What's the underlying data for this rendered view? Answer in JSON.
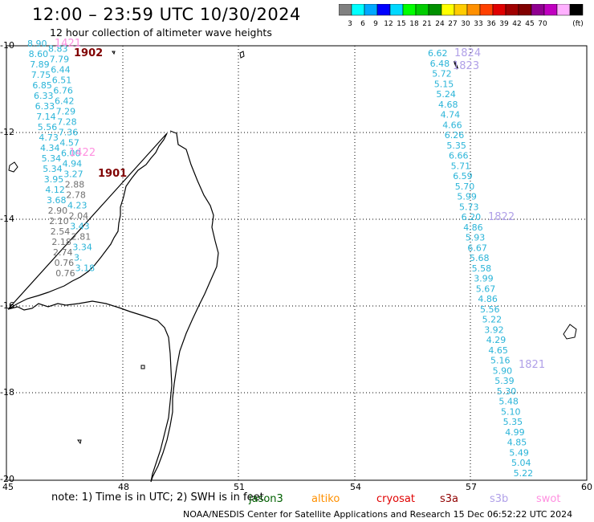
{
  "title": "12:00 – 23:59 UTC 10/30/2024",
  "subtitle": "12 hour collection of altimeter wave heights",
  "legend": {
    "unit": "(ft)",
    "colors": [
      "#808080",
      "#00ffff",
      "#00a8ff",
      "#0000ff",
      "#00d8ff",
      "#00ff00",
      "#00cc00",
      "#009000",
      "#ffff00",
      "#ffcc00",
      "#ff9000",
      "#ff4000",
      "#e00000",
      "#a00000",
      "#800000",
      "#900090",
      "#c000c0",
      "#ffb0ff",
      "#000000"
    ],
    "labels": [
      "3",
      "6",
      "9",
      "12",
      "15",
      "18",
      "21",
      "24",
      "27",
      "30",
      "33",
      "36",
      "39",
      "42",
      "45",
      "70"
    ]
  },
  "axes": {
    "x_ticks": [
      "45",
      "48",
      "51",
      "54",
      "57",
      "60"
    ],
    "y_ticks": [
      "-10",
      "-12",
      "-14",
      "-16",
      "-18",
      "-20"
    ]
  },
  "passes": [
    {
      "id": "1421",
      "color": "#ff90e0"
    },
    {
      "id": "1902",
      "color": "#800000"
    },
    {
      "id": "1422",
      "color": "#ff90e0"
    },
    {
      "id": "1901",
      "color": "#800000"
    },
    {
      "id": "1824",
      "color": "#b0a0e8"
    },
    {
      "id": "1823",
      "color": "#b0a0e8"
    },
    {
      "id": "1822",
      "color": "#b0a0e8"
    },
    {
      "id": "1821",
      "color": "#b0a0e8"
    }
  ],
  "west_track": [
    {
      "v": "8.90",
      "c": "#2ab4d8"
    },
    {
      "v": "8.83",
      "c": "#2ab4d8"
    },
    {
      "v": "8.60",
      "c": "#2ab4d8"
    },
    {
      "v": "7.79",
      "c": "#2ab4d8"
    },
    {
      "v": "7.89",
      "c": "#2ab4d8"
    },
    {
      "v": "6.44",
      "c": "#2ab4d8"
    },
    {
      "v": "7.75",
      "c": "#2ab4d8"
    },
    {
      "v": "6.51",
      "c": "#2ab4d8"
    },
    {
      "v": "6.85",
      "c": "#2ab4d8"
    },
    {
      "v": "6.76",
      "c": "#2ab4d8"
    },
    {
      "v": "6.33",
      "c": "#2ab4d8"
    },
    {
      "v": "6.42",
      "c": "#2ab4d8"
    },
    {
      "v": "6.33",
      "c": "#2ab4d8"
    },
    {
      "v": "7.29",
      "c": "#2ab4d8"
    },
    {
      "v": "7.14",
      "c": "#2ab4d8"
    },
    {
      "v": "7.28",
      "c": "#2ab4d8"
    },
    {
      "v": "5.56",
      "c": "#2ab4d8"
    },
    {
      "v": "7.36",
      "c": "#2ab4d8"
    },
    {
      "v": "4.73",
      "c": "#2ab4d8"
    },
    {
      "v": "4.57",
      "c": "#2ab4d8"
    },
    {
      "v": "4.34",
      "c": "#2ab4d8"
    },
    {
      "v": "6.00",
      "c": "#2ab4d8"
    },
    {
      "v": "5.34",
      "c": "#2ab4d8"
    },
    {
      "v": "4.94",
      "c": "#2ab4d8"
    },
    {
      "v": "5.34",
      "c": "#2ab4d8"
    },
    {
      "v": "3.27",
      "c": "#2ab4d8"
    },
    {
      "v": "3.95",
      "c": "#2ab4d8"
    },
    {
      "v": "2.88",
      "c": "#707070"
    },
    {
      "v": "4.12",
      "c": "#2ab4d8"
    },
    {
      "v": "2.78",
      "c": "#707070"
    },
    {
      "v": "3.68",
      "c": "#2ab4d8"
    },
    {
      "v": "4.23",
      "c": "#2ab4d8"
    },
    {
      "v": "2.90",
      "c": "#707070"
    },
    {
      "v": "2.04",
      "c": "#707070"
    },
    {
      "v": "2.10",
      "c": "#707070"
    },
    {
      "v": "3.43",
      "c": "#2ab4d8"
    },
    {
      "v": "2.54",
      "c": "#707070"
    },
    {
      "v": "2.81",
      "c": "#707070"
    },
    {
      "v": "2.18",
      "c": "#707070"
    },
    {
      "v": "3.34",
      "c": "#2ab4d8"
    },
    {
      "v": "2.74",
      "c": "#707070"
    },
    {
      "v": "3.",
      "c": "#2ab4d8"
    },
    {
      "v": "0.76",
      "c": "#707070"
    },
    {
      "v": "3.18",
      "c": "#2ab4d8"
    },
    {
      "v": "0.76",
      "c": "#707070"
    }
  ],
  "east_track": [
    {
      "v": "6.62",
      "c": "#2ab4d8"
    },
    {
      "v": "6.48",
      "c": "#2ab4d8"
    },
    {
      "v": "5.72",
      "c": "#2ab4d8"
    },
    {
      "v": "5.15",
      "c": "#2ab4d8"
    },
    {
      "v": "5.24",
      "c": "#2ab4d8"
    },
    {
      "v": "4.68",
      "c": "#2ab4d8"
    },
    {
      "v": "4.74",
      "c": "#2ab4d8"
    },
    {
      "v": "4.66",
      "c": "#2ab4d8"
    },
    {
      "v": "6.26",
      "c": "#2ab4d8"
    },
    {
      "v": "5.35",
      "c": "#2ab4d8"
    },
    {
      "v": "6.66",
      "c": "#2ab4d8"
    },
    {
      "v": "5.71",
      "c": "#2ab4d8"
    },
    {
      "v": "6.59",
      "c": "#2ab4d8"
    },
    {
      "v": "5.70",
      "c": "#2ab4d8"
    },
    {
      "v": "5.99",
      "c": "#2ab4d8"
    },
    {
      "v": "5.73",
      "c": "#2ab4d8"
    },
    {
      "v": "6.20",
      "c": "#2ab4d8"
    },
    {
      "v": "4.86",
      "c": "#2ab4d8"
    },
    {
      "v": "5.93",
      "c": "#2ab4d8"
    },
    {
      "v": "6.67",
      "c": "#2ab4d8"
    },
    {
      "v": "5.68",
      "c": "#2ab4d8"
    },
    {
      "v": "5.58",
      "c": "#2ab4d8"
    },
    {
      "v": "3.99",
      "c": "#2ab4d8"
    },
    {
      "v": "5.67",
      "c": "#2ab4d8"
    },
    {
      "v": "4.86",
      "c": "#2ab4d8"
    },
    {
      "v": "5.56",
      "c": "#2ab4d8"
    },
    {
      "v": "5.22",
      "c": "#2ab4d8"
    },
    {
      "v": "3.92",
      "c": "#2ab4d8"
    },
    {
      "v": "4.29",
      "c": "#2ab4d8"
    },
    {
      "v": "4.65",
      "c": "#2ab4d8"
    },
    {
      "v": "5.16",
      "c": "#2ab4d8"
    },
    {
      "v": "5.90",
      "c": "#2ab4d8"
    },
    {
      "v": "5.39",
      "c": "#2ab4d8"
    },
    {
      "v": "5.30",
      "c": "#2ab4d8"
    },
    {
      "v": "5.48",
      "c": "#2ab4d8"
    },
    {
      "v": "5.10",
      "c": "#2ab4d8"
    },
    {
      "v": "5.35",
      "c": "#2ab4d8"
    },
    {
      "v": "4.99",
      "c": "#2ab4d8"
    },
    {
      "v": "4.85",
      "c": "#2ab4d8"
    },
    {
      "v": "5.49",
      "c": "#2ab4d8"
    },
    {
      "v": "5.04",
      "c": "#2ab4d8"
    },
    {
      "v": "5.22",
      "c": "#2ab4d8"
    }
  ],
  "footnote": {
    "text": "note: 1) Time is in UTC; 2) SWH is in feet",
    "sats": [
      {
        "name": "jason3",
        "color": "#006000"
      },
      {
        "name": "altiko",
        "color": "#ff9000"
      },
      {
        "name": "cryosat",
        "color": "#e00000"
      },
      {
        "name": "s3a",
        "color": "#900000"
      },
      {
        "name": "s3b",
        "color": "#b0a0e8"
      },
      {
        "name": "swot",
        "color": "#ff90e0"
      }
    ]
  },
  "credit": "NOAA/NESDIS Center for Satellite Applications and Research   15 Dec 06:52:22 UTC 2024"
}
